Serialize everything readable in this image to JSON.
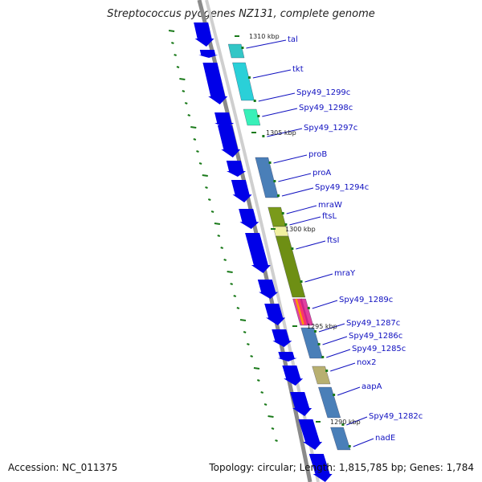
{
  "title": "Streptococcus pyogenes NZ131, complete genome",
  "footer": {
    "accession": "Accession: NC_011375",
    "summary": "Topology: circular; Length: 1,815,785 bp; Genes: 1,784"
  },
  "scale_labels": [
    "1310 kbp",
    "1305 kbp",
    "1300 kbp",
    "1295 kbp",
    "1290 kbp"
  ],
  "genes": [
    "tal",
    "tkt",
    "Spy49_1299c",
    "Spy49_1298c",
    "Spy49_1297c",
    "proB",
    "proA",
    "Spy49_1294c",
    "mraW",
    "ftsL",
    "ftsI",
    "mraY",
    "Spy49_1289c",
    "Spy49_1287c",
    "Spy49_1286c",
    "Spy49_1285c",
    "nox2",
    "aapA",
    "Spy49_1282c",
    "nadE"
  ],
  "colors": {
    "backbone": "#8a8a8a",
    "arrow": "#0000e8",
    "label": "#1010c0",
    "tick": "#1a7a1a"
  }
}
